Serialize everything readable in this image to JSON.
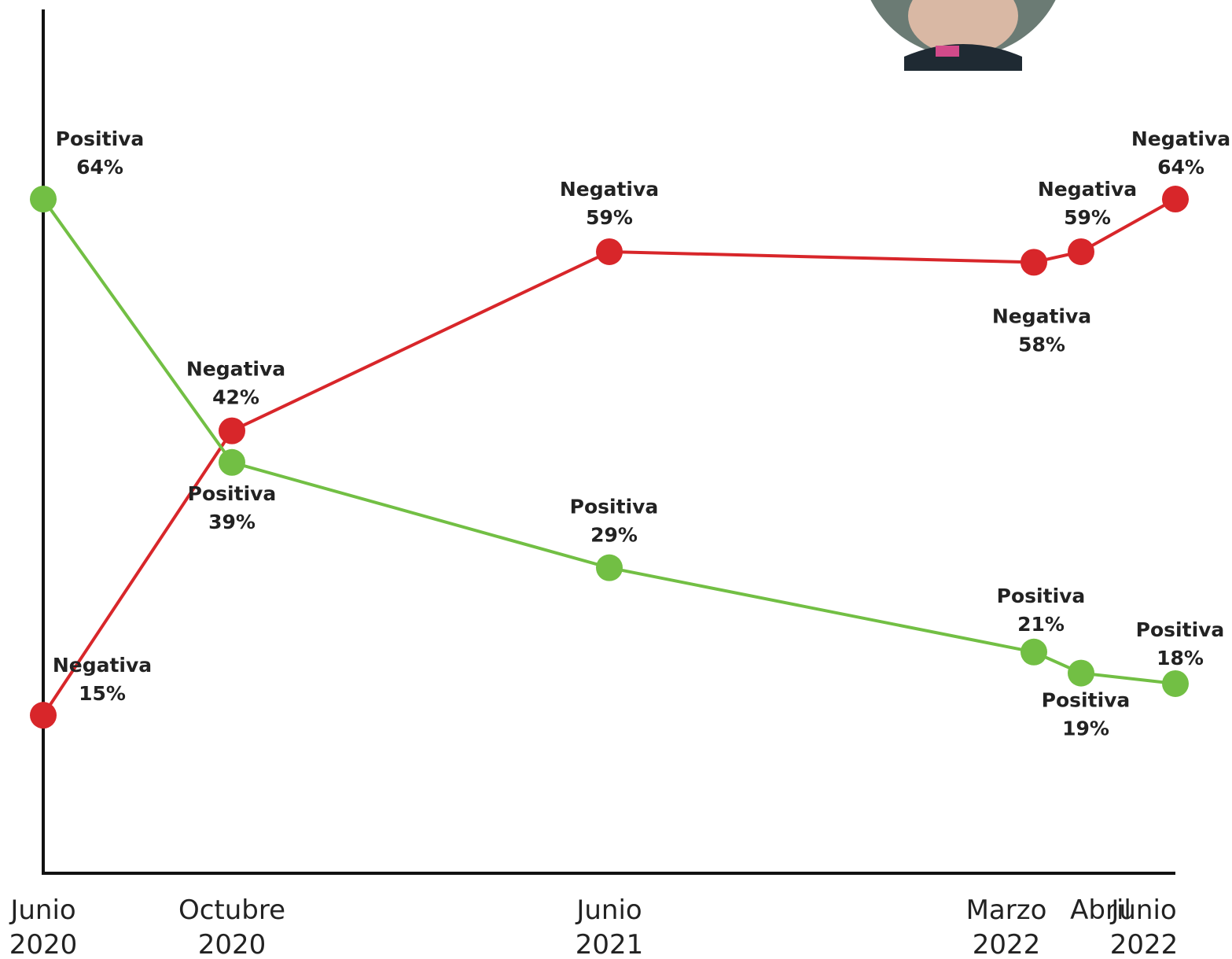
{
  "chart_data": {
    "type": "line",
    "x": [
      {
        "value": "2020-06",
        "label": "Junio 2020"
      },
      {
        "value": "2020-10",
        "label": "Octubre 2020"
      },
      {
        "value": "2021-06",
        "label": "Junio 2021"
      },
      {
        "value": "2022-03",
        "label": "Marzo 2022"
      },
      {
        "value": "2022-04",
        "label": "Abril"
      },
      {
        "value": "2022-06",
        "label": "Junio 2022"
      }
    ],
    "xlim": [
      "2020-06",
      "2022-06"
    ],
    "ylim": [
      0,
      82
    ],
    "series": [
      {
        "name": "Negativa",
        "color": "#d8262a",
        "values": [
          15,
          42,
          59,
          58,
          59,
          64
        ],
        "value_labels": [
          "15%",
          "42%",
          "59%",
          "58%",
          "59%",
          "64%"
        ]
      },
      {
        "name": "Positiva",
        "color": "#72bf44",
        "values": [
          64,
          39,
          29,
          21,
          19,
          18
        ],
        "value_labels": [
          "64%",
          "39%",
          "29%",
          "21%",
          "19%",
          "18%"
        ]
      }
    ]
  }
}
